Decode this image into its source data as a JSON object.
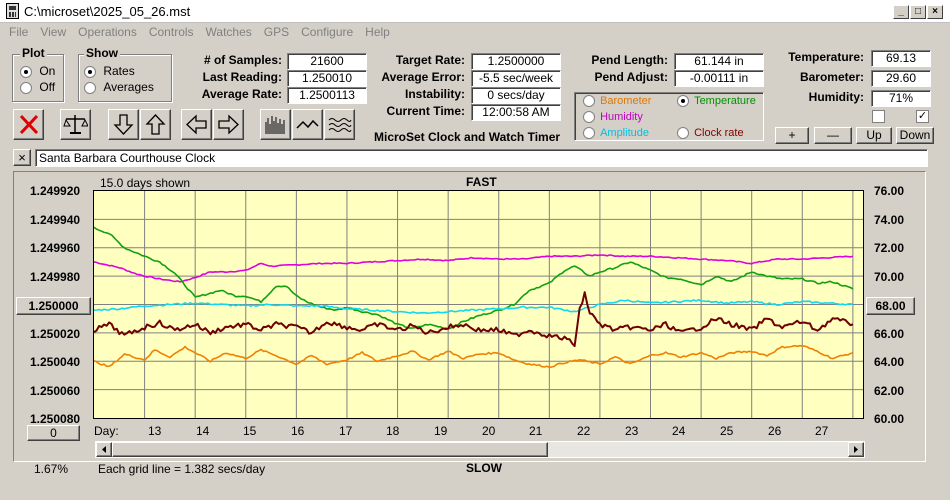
{
  "window": {
    "title": "C:\\microset\\2025_05_26.mst",
    "btn_minimize": "_",
    "btn_maximize": "□",
    "btn_close": "×"
  },
  "menu": [
    "File",
    "View",
    "Operations",
    "Controls",
    "Watches",
    "GPS",
    "Configure",
    "Help"
  ],
  "plot_group": {
    "title": "Plot",
    "on_label": "On",
    "off_label": "Off",
    "selected": "On"
  },
  "show_group": {
    "title": "Show",
    "rates_label": "Rates",
    "averages_label": "Averages",
    "selected": "Rates"
  },
  "stats": {
    "samples_label": "# of Samples:",
    "samples_value": "21600",
    "last_reading_label": "Last Reading:",
    "last_reading_value": "1.250010",
    "average_rate_label": "Average Rate:",
    "average_rate_value": "1.2500113",
    "target_rate_label": "Target Rate:",
    "target_rate_value": "1.2500000",
    "average_error_label": "Average Error:",
    "average_error_value": "-5.5 sec/week",
    "instability_label": "Instability:",
    "instability_value": "0 secs/day",
    "current_time_label": "Current Time:",
    "current_time_value": "12:00:58 AM",
    "pend_length_label": "Pend Length:",
    "pend_length_value": "61.144 in",
    "pend_adjust_label": "Pend Adjust:",
    "pend_adjust_value": "-0.00111 in",
    "temperature_label": "Temperature:",
    "temperature_value": "69.13",
    "barometer_label": "Barometer:",
    "barometer_value": "29.60",
    "humidity_label": "Humidity:",
    "humidity_value": "71%"
  },
  "app_caption": "MicroSet Clock and Watch Timer",
  "sensor_options": {
    "barometer": "Barometer",
    "temperature": "Temperature",
    "humidity": "Humidity",
    "amplitude": "Amplitude",
    "clock_rate": "Clock rate",
    "selected": "Temperature",
    "colors": {
      "barometer": "#e07800",
      "temperature": "#009000",
      "humidity": "#c000c0",
      "amplitude": "#00c0e0",
      "clock_rate": "#800000"
    }
  },
  "checkboxes": {
    "left_checked": false,
    "right_checked": true,
    "right_mark": "✓"
  },
  "adjust_buttons": {
    "plus": "+",
    "minus": "—",
    "up": "Up",
    "down": "Down"
  },
  "clock_name": "Santa Barbara Courthouse Clock",
  "clear_button": "×",
  "chart_info": {
    "days_shown": "15.0 days shown",
    "fast_label": "FAST",
    "slow_label": "SLOW",
    "grid_note": "Each grid line = 1.382 secs/day",
    "percent": "1.67%",
    "center_rate_button": "1.250000",
    "center_temp_button": "68.00",
    "offset_button": "0",
    "day_label": "Day:"
  },
  "chart_data": {
    "type": "line",
    "left_axis": {
      "ticks": [
        "1.249920",
        "1.249940",
        "1.249960",
        "1.249980",
        "",
        "1.250020",
        "1.250040",
        "1.250060",
        "1.250080"
      ],
      "range": [
        1.24992,
        1.25008
      ],
      "inverted": true
    },
    "right_axis": {
      "ticks": [
        "76.00",
        "74.00",
        "72.00",
        "70.00",
        "",
        "66.00",
        "64.00",
        "62.00",
        "60.00"
      ],
      "range": [
        60,
        76
      ]
    },
    "x_ticks": [
      "13",
      "14",
      "15",
      "16",
      "17",
      "18",
      "19",
      "20",
      "21",
      "22",
      "23",
      "24",
      "25",
      "26",
      "27"
    ],
    "xlim": [
      12.0,
      27.2
    ],
    "grid": true,
    "series": [
      {
        "name": "Humidity",
        "color": "#e000e0",
        "x": [
          12,
          12.5,
          12.8,
          13,
          13.3,
          13.7,
          14,
          14.3,
          14.6,
          15,
          15.3,
          15.5,
          16,
          16.5,
          17,
          17.5,
          18,
          18.5,
          19,
          19.5,
          20,
          20.5,
          21,
          21.5,
          22,
          22.5,
          23,
          23.5,
          24,
          24.5,
          25,
          25.5,
          26,
          26.5,
          27
        ],
        "y": [
          71.0,
          70.6,
          70.2,
          70.0,
          69.8,
          69.6,
          69.9,
          70.3,
          70.3,
          70.4,
          70.9,
          70.7,
          70.8,
          70.9,
          70.9,
          71.0,
          71.1,
          71.2,
          71.1,
          71.3,
          71.2,
          71.2,
          71.4,
          71.4,
          71.5,
          71.4,
          71.4,
          71.3,
          71.2,
          71.1,
          70.9,
          71.2,
          71.2,
          71.3,
          71.4
        ]
      },
      {
        "name": "Temperature",
        "color": "#10a010",
        "x": [
          12,
          12.3,
          12.6,
          13,
          13.3,
          13.6,
          14,
          14.2,
          14.5,
          14.8,
          15,
          15.3,
          15.6,
          15.8,
          16,
          16.2,
          16.5,
          16.8,
          17,
          17.3,
          17.6,
          18,
          18.3,
          18.6,
          19,
          19.3,
          19.6,
          20,
          20.3,
          20.6,
          21,
          21.3,
          21.5,
          21.8,
          22,
          22.3,
          22.6,
          23,
          23.3,
          23.6,
          24,
          24.3,
          24.6,
          25,
          25.3,
          25.6,
          26,
          26.3,
          26.6,
          27
        ],
        "y": [
          73.4,
          73.0,
          72.0,
          71.4,
          71.0,
          70.2,
          68.5,
          68.7,
          69.0,
          68.6,
          68.6,
          68.2,
          69.3,
          69.3,
          68.6,
          68.2,
          67.8,
          67.6,
          67.8,
          67.5,
          67.3,
          66.6,
          66.3,
          66.6,
          66.3,
          66.8,
          67.2,
          67.6,
          68.0,
          69.0,
          69.5,
          70.4,
          70.7,
          70.0,
          70.3,
          70.6,
          71.0,
          70.4,
          69.9,
          69.8,
          69.4,
          70.0,
          69.6,
          70.3,
          70.0,
          69.8,
          69.8,
          69.5,
          69.6,
          69.1
        ]
      },
      {
        "name": "Amplitude",
        "color": "#10d8f0",
        "x": [
          12,
          12.5,
          13,
          13.5,
          14,
          14.5,
          15,
          15.5,
          16,
          16.5,
          17,
          17.5,
          18,
          18.5,
          19,
          19.5,
          20,
          20.5,
          21,
          21.5,
          22,
          22.5,
          23,
          23.5,
          24,
          24.5,
          25,
          25.5,
          26,
          26.5,
          27
        ],
        "y": [
          67.6,
          67.7,
          67.9,
          68.0,
          68.1,
          68.0,
          67.9,
          68.0,
          67.9,
          67.9,
          67.7,
          67.6,
          67.5,
          67.4,
          67.5,
          67.6,
          67.7,
          67.8,
          67.8,
          67.5,
          68.0,
          68.3,
          68.1,
          68.2,
          68.3,
          68.1,
          68.2,
          68.0,
          68.2,
          68.1,
          68.0
        ]
      },
      {
        "name": "Clock rate",
        "color": "#700000",
        "x": [
          12,
          12.3,
          12.6,
          13,
          13.3,
          13.6,
          14,
          14.3,
          14.6,
          15,
          15.3,
          15.6,
          16,
          16.3,
          16.6,
          17,
          17.3,
          17.6,
          18,
          18.3,
          18.6,
          19,
          19.3,
          19.6,
          20,
          20.3,
          20.6,
          21,
          21.3,
          21.5,
          21.6,
          21.7,
          21.8,
          22,
          22.3,
          22.6,
          23,
          23.3,
          23.6,
          24,
          24.3,
          24.6,
          25,
          25.3,
          25.6,
          26,
          26.3,
          26.6,
          27
        ],
        "y": [
          1.250018,
          1.250014,
          1.250022,
          1.250016,
          1.250013,
          1.250018,
          1.250014,
          1.25002,
          1.250016,
          1.250014,
          1.250018,
          1.250014,
          1.250016,
          1.25002,
          1.250012,
          1.250016,
          1.250018,
          1.250014,
          1.250018,
          1.250015,
          1.25002,
          1.250016,
          1.250014,
          1.250018,
          1.250018,
          1.250022,
          1.250018,
          1.250022,
          1.250024,
          1.250028,
          1.250004,
          1.249992,
          1.250006,
          1.250014,
          1.250018,
          1.250016,
          1.250018,
          1.250014,
          1.25002,
          1.250016,
          1.25001,
          1.250014,
          1.250018,
          1.25001,
          1.250016,
          1.250012,
          1.250018,
          1.25001,
          1.250014
        ]
      },
      {
        "name": "Barometer",
        "color": "#f08000",
        "x": [
          12,
          12.3,
          12.6,
          13,
          13.2,
          13.5,
          13.8,
          14,
          14.3,
          14.6,
          15,
          15.3,
          15.6,
          16,
          16.3,
          16.6,
          17,
          17.3,
          17.6,
          18,
          18.3,
          18.6,
          19,
          19.3,
          19.6,
          20,
          20.3,
          20.6,
          21,
          21.3,
          21.6,
          22,
          22.3,
          22.6,
          23,
          23.3,
          23.6,
          24,
          24.3,
          24.6,
          25,
          25.3,
          25.6,
          26,
          26.3,
          26.6,
          27
        ],
        "y": [
          64.0,
          63.6,
          64.5,
          64.1,
          64.8,
          64.3,
          65.0,
          64.6,
          64.0,
          64.6,
          64.2,
          64.8,
          64.4,
          63.8,
          64.4,
          63.8,
          64.1,
          64.6,
          64.0,
          64.4,
          64.7,
          64.1,
          64.7,
          64.2,
          64.5,
          64.6,
          64.1,
          63.8,
          63.6,
          63.9,
          64.1,
          63.8,
          64.3,
          63.8,
          64.4,
          64.6,
          64.3,
          64.6,
          64.2,
          64.6,
          64.7,
          64.4,
          65.0,
          65.1,
          64.7,
          64.2,
          64.6
        ]
      }
    ]
  }
}
